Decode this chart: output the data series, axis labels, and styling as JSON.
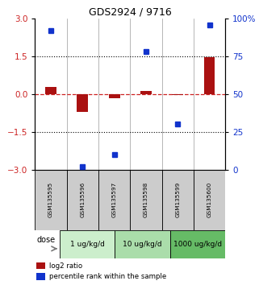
{
  "title": "GDS2924 / 9716",
  "samples": [
    "GSM135595",
    "GSM135596",
    "GSM135597",
    "GSM135598",
    "GSM135599",
    "GSM135600"
  ],
  "log2_ratio": [
    0.28,
    -0.72,
    -0.18,
    0.12,
    -0.05,
    1.48
  ],
  "percentile_rank": [
    92,
    2,
    10,
    78,
    30,
    96
  ],
  "dose_groups": [
    {
      "label": "1 ug/kg/d",
      "color": "#cceecc",
      "span": [
        0,
        2
      ]
    },
    {
      "label": "10 ug/kg/d",
      "color": "#aaddaa",
      "span": [
        2,
        4
      ]
    },
    {
      "label": "1000 ug/kg/d",
      "color": "#66bb66",
      "span": [
        4,
        6
      ]
    }
  ],
  "ylim_left": [
    -3,
    3
  ],
  "ylim_right": [
    0,
    100
  ],
  "bar_color": "#aa1111",
  "dot_color": "#1133cc",
  "hline_color": "#cc2222",
  "dotted_levels": [
    1.5,
    -1.5
  ],
  "left_ticks": [
    3,
    1.5,
    0,
    -1.5,
    -3
  ],
  "right_ticks": [
    100,
    75,
    50,
    25,
    0
  ],
  "left_tick_color": "#cc2222",
  "right_tick_color": "#1133cc",
  "legend_bar_label": "log2 ratio",
  "legend_dot_label": "percentile rank within the sample",
  "dose_label": "dose",
  "bar_width": 0.35,
  "gray_color": "#cccccc",
  "sample_box_color": "#cccccc",
  "n": 6
}
